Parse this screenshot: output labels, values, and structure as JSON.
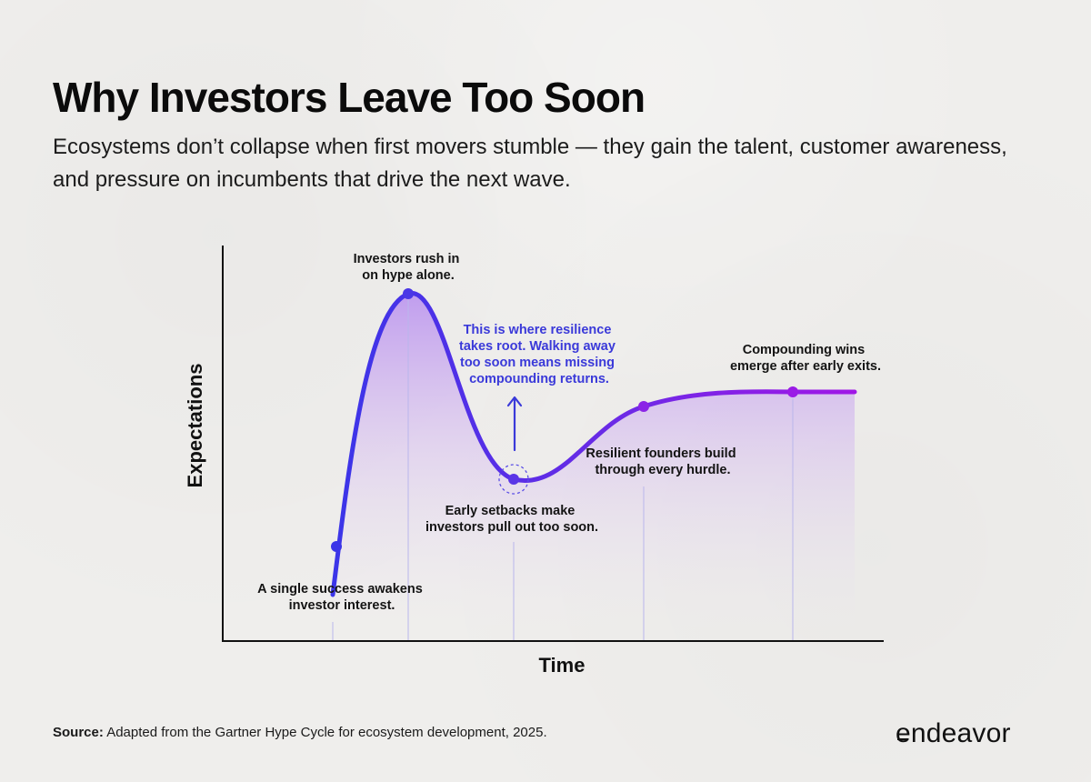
{
  "title": "Why Investors Leave Too Soon",
  "subtitle": "Ecosystems don’t collapse when first movers stumble — they gain the talent, customer awareness, and pressure on incumbents that drive the next wave.",
  "diagram": {
    "type": "hype-cycle",
    "x_axis_label": "Time",
    "y_axis_label": "Expectations",
    "annotations": {
      "trigger": [
        "A single success awakens",
        "investor interest."
      ],
      "peak": [
        "Investors rush in",
        "on hype alone."
      ],
      "trough": [
        "Early setbacks make",
        "investors pull out too soon."
      ],
      "resilience": [
        "This is where resilience",
        "takes root. Walking away",
        "too soon means missing",
        "compounding returns."
      ],
      "slope": [
        "Resilient founders build",
        "through every hurdle."
      ],
      "plateau": [
        "Compounding wins",
        "emerge after early exits."
      ]
    },
    "colors": {
      "curve_start": "#3b35e8",
      "curve_end": "#a017e6",
      "highlight_text": "#3a39d9"
    }
  },
  "source": {
    "label": "Source:",
    "text": "Adapted from the Gartner Hype Cycle for ecosystem development, 2025."
  },
  "logo": "endeavor"
}
